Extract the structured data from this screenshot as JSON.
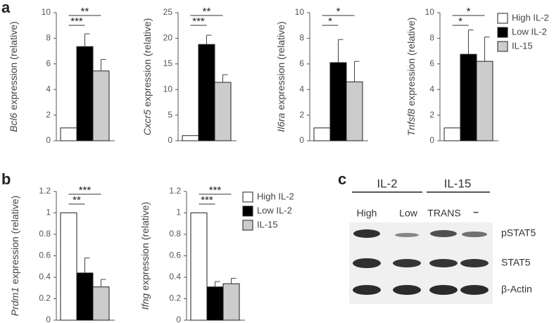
{
  "panel_labels": [
    "a",
    "b",
    "c"
  ],
  "chart_data": [
    {
      "type": "bar",
      "ylabel_gene": "Bcl6",
      "ylabel": "expression (relative)",
      "values": [
        1,
        7.35,
        5.45
      ],
      "errors": [
        0,
        1.0,
        0.9
      ],
      "colors": [
        "#ffffff",
        "#000000",
        "#cccccc"
      ],
      "ylim": [
        0,
        10
      ],
      "yticks": [
        0,
        2,
        4,
        6,
        8,
        10
      ],
      "annotations": [
        "***",
        "**"
      ]
    },
    {
      "type": "bar",
      "ylabel_gene": "Cxcr5",
      "ylabel": "expression (relative)",
      "values": [
        1,
        18.8,
        11.4
      ],
      "errors": [
        0,
        1.8,
        1.5
      ],
      "colors": [
        "#ffffff",
        "#000000",
        "#cccccc"
      ],
      "ylim": [
        0,
        25
      ],
      "yticks": [
        0,
        5,
        10,
        15,
        20,
        25
      ],
      "annotations": [
        "***",
        "**"
      ]
    },
    {
      "type": "bar",
      "ylabel_gene": "Il6ra",
      "ylabel": "expression (relative)",
      "values": [
        1,
        6.1,
        4.6
      ],
      "errors": [
        0,
        1.8,
        1.6
      ],
      "colors": [
        "#ffffff",
        "#000000",
        "#cccccc"
      ],
      "ylim": [
        0,
        10
      ],
      "yticks": [
        0,
        2,
        4,
        6,
        8,
        10
      ],
      "annotations": [
        "*",
        "*"
      ]
    },
    {
      "type": "bar",
      "ylabel_gene": "Tnfsf8",
      "ylabel": "expression (relative)",
      "values": [
        1,
        6.75,
        6.2
      ],
      "errors": [
        0,
        1.9,
        1.9
      ],
      "colors": [
        "#ffffff",
        "#000000",
        "#cccccc"
      ],
      "ylim": [
        0,
        10
      ],
      "yticks": [
        0,
        2,
        4,
        6,
        8,
        10
      ],
      "annotations": [
        "*",
        "*"
      ],
      "legend": [
        "High IL-2",
        "Low IL-2",
        "IL-15"
      ]
    },
    {
      "type": "bar",
      "ylabel_gene": "Prdm1",
      "ylabel": "expression (relative)",
      "values": [
        1,
        0.44,
        0.31
      ],
      "errors": [
        0,
        0.14,
        0.07
      ],
      "colors": [
        "#ffffff",
        "#000000",
        "#cccccc"
      ],
      "ylim": [
        0,
        1.2
      ],
      "yticks": [
        0,
        0.2,
        0.4,
        0.6,
        0.8,
        1,
        1.2
      ],
      "annotations": [
        "**",
        "***"
      ]
    },
    {
      "type": "bar",
      "ylabel_gene": "Ifng",
      "ylabel": "expression (relative)",
      "values": [
        1,
        0.31,
        0.34
      ],
      "errors": [
        0,
        0.05,
        0.05
      ],
      "colors": [
        "#ffffff",
        "#000000",
        "#cccccc"
      ],
      "ylim": [
        0,
        1.2
      ],
      "yticks": [
        0,
        0.2,
        0.4,
        0.6,
        0.8,
        1,
        1.2
      ],
      "annotations": [
        "***",
        "***"
      ],
      "legend": [
        "High IL-2",
        "Low IL-2",
        "IL-15"
      ]
    }
  ],
  "blot": {
    "groups": [
      "IL-2",
      "IL-15"
    ],
    "lanes": [
      "High",
      "Low",
      "TRANS",
      "–"
    ],
    "rows": [
      "pSTAT5",
      "STAT5",
      "β-Actin"
    ]
  }
}
